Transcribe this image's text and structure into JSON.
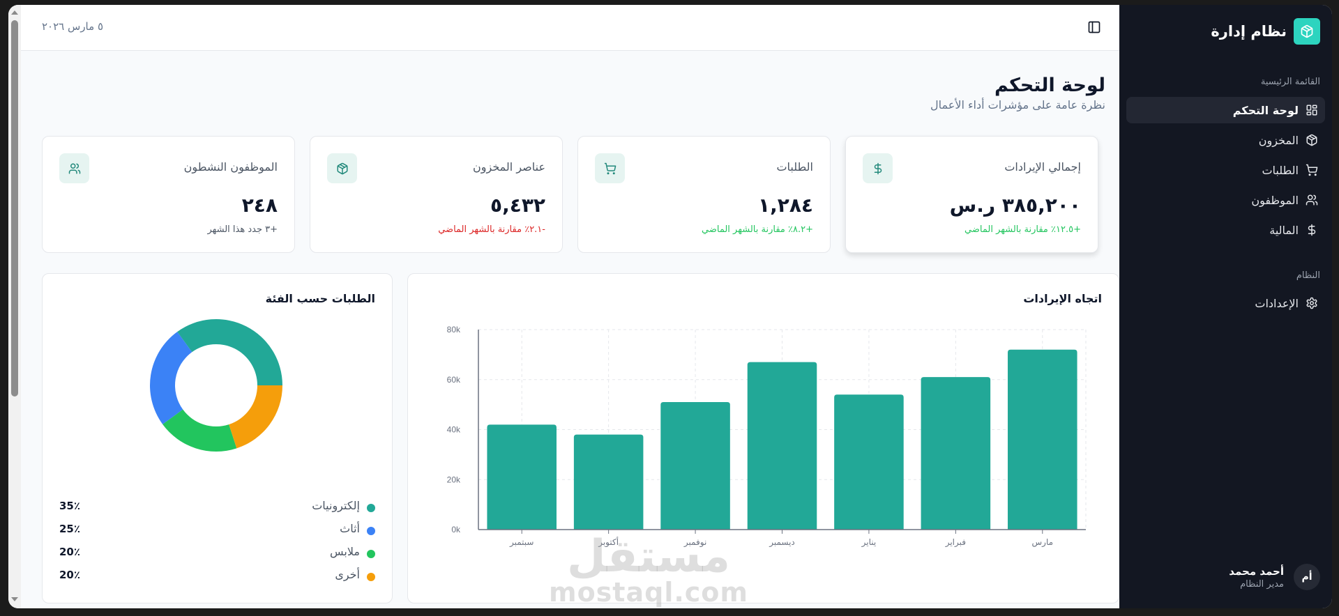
{
  "header": {
    "date": "٥ مارس ٢٠٢٦",
    "toggle_icon": "sidebar-toggle-icon"
  },
  "page": {
    "title": "لوحة التحكم",
    "subtitle": "نظرة عامة على مؤشرات أداء الأعمال"
  },
  "stats": [
    {
      "label": "إجمالي الإيرادات",
      "value": "٣٨٥,٢٠٠ ر.س",
      "delta": "+١٢.٥٪ مقارنة بالشهر الماضي",
      "trend": "up",
      "icon": "dollar-icon"
    },
    {
      "label": "الطلبات",
      "value": "١,٢٨٤",
      "delta": "+٨.٢٪ مقارنة بالشهر الماضي",
      "trend": "up",
      "icon": "cart-icon"
    },
    {
      "label": "عناصر المخزون",
      "value": "٥,٤٣٢",
      "delta": "-٢.١٪ مقارنة بالشهر الماضي",
      "trend": "down",
      "icon": "box-icon"
    },
    {
      "label": "الموظفون النشطون",
      "value": "٢٤٨",
      "delta": "+٣ جدد هذا الشهر",
      "trend": "neutral",
      "icon": "users-icon"
    }
  ],
  "revenue_panel": {
    "title": "اتجاه الإيرادات"
  },
  "category_panel": {
    "title": "الطلبات حسب الفئة"
  },
  "chart_data": [
    {
      "type": "bar",
      "title": "اتجاه الإيرادات",
      "categories": [
        "سبتمبر",
        "أكتوبر",
        "نوفمبر",
        "ديسمبر",
        "يناير",
        "فبراير",
        "مارس"
      ],
      "values": [
        42000,
        38000,
        51000,
        67000,
        54000,
        61000,
        72000
      ],
      "yticks": [
        "0k",
        "20k",
        "40k",
        "60k",
        "80k"
      ],
      "ylim": [
        0,
        80000
      ],
      "grid": true,
      "color": "#22a897"
    },
    {
      "type": "pie",
      "title": "الطلبات حسب الفئة",
      "donut": true,
      "categories": [
        "إلكترونيات",
        "أثاث",
        "ملابس",
        "أخرى"
      ],
      "values": [
        35,
        25,
        20,
        20
      ],
      "labels": [
        "35٪",
        "25٪",
        "20٪",
        "20٪"
      ],
      "colors": [
        "#22a897",
        "#3b82f6",
        "#22c55e",
        "#f59e0b"
      ],
      "legend_position": "bottom"
    }
  ],
  "sidebar": {
    "brand": "نظام إدارة",
    "sections": [
      {
        "label": "القائمة الرئيسية"
      },
      {
        "label": "النظام"
      }
    ],
    "items": [
      {
        "label": "لوحة التحكم",
        "icon": "dashboard-icon",
        "active": true
      },
      {
        "label": "المخزون",
        "icon": "box-icon"
      },
      {
        "label": "الطلبات",
        "icon": "cart-icon"
      },
      {
        "label": "الموظفون",
        "icon": "users-icon"
      },
      {
        "label": "المالية",
        "icon": "dollar-icon"
      },
      {
        "label": "الإعدادات",
        "icon": "gear-icon"
      }
    ],
    "user": {
      "initials": "أم",
      "name": "أحمد محمد",
      "role": "مدير النظام"
    }
  },
  "watermark": {
    "arabic": "مستقل",
    "latin": "mostaql.com"
  },
  "colors": {
    "accent": "#2dd4bf",
    "bar": "#22a897",
    "sidebar_bg": "#131722",
    "up": "#22c55e",
    "down": "#dc2626"
  }
}
